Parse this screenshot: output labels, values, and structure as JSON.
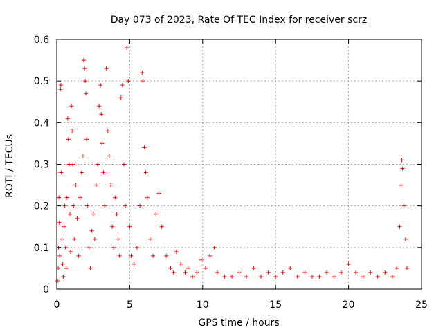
{
  "chart_data": {
    "type": "scatter",
    "title": "Day 073 of 2023, Rate Of TEC Index for receiver scrz",
    "xlabel": "GPS time / hours",
    "ylabel": "ROTI / TECUs",
    "xlim": [
      0,
      25
    ],
    "ylim": [
      0,
      0.6
    ],
    "xticks": [
      0,
      5,
      10,
      15,
      20,
      25
    ],
    "yticks": [
      0,
      0.1,
      0.2,
      0.3,
      0.4,
      0.5,
      0.6
    ],
    "xtick_labels": [
      "0",
      "5",
      "10",
      "15",
      "20",
      "25"
    ],
    "ytick_labels": [
      "0",
      "0.1",
      "0.2",
      "0.3",
      "0.4",
      "0.5",
      "0.6"
    ],
    "grid": true,
    "marker": "+",
    "marker_color": "#ff0000",
    "series": [
      {
        "name": "ROTI",
        "points": [
          [
            0.05,
            0.02
          ],
          [
            0.1,
            0.05
          ],
          [
            0.12,
            0.1
          ],
          [
            0.15,
            0.22
          ],
          [
            0.18,
            0.16
          ],
          [
            0.2,
            0.08
          ],
          [
            0.25,
            0.48
          ],
          [
            0.28,
            0.49
          ],
          [
            0.3,
            0.28
          ],
          [
            0.35,
            0.12
          ],
          [
            0.4,
            0.06
          ],
          [
            0.45,
            0.03
          ],
          [
            0.5,
            0.15
          ],
          [
            0.55,
            0.2
          ],
          [
            0.6,
            0.1
          ],
          [
            0.65,
            0.05
          ],
          [
            0.7,
            0.22
          ],
          [
            0.75,
            0.41
          ],
          [
            0.8,
            0.36
          ],
          [
            0.85,
            0.3
          ],
          [
            0.9,
            0.18
          ],
          [
            0.95,
            0.09
          ],
          [
            1.0,
            0.44
          ],
          [
            1.05,
            0.38
          ],
          [
            1.1,
            0.3
          ],
          [
            1.15,
            0.2
          ],
          [
            1.2,
            0.12
          ],
          [
            1.3,
            0.25
          ],
          [
            1.4,
            0.17
          ],
          [
            1.5,
            0.08
          ],
          [
            1.6,
            0.22
          ],
          [
            1.7,
            0.28
          ],
          [
            1.8,
            0.32
          ],
          [
            1.85,
            0.55
          ],
          [
            1.9,
            0.53
          ],
          [
            1.95,
            0.5
          ],
          [
            2.0,
            0.47
          ],
          [
            2.05,
            0.36
          ],
          [
            2.1,
            0.2
          ],
          [
            2.2,
            0.1
          ],
          [
            2.3,
            0.05
          ],
          [
            2.4,
            0.14
          ],
          [
            2.5,
            0.18
          ],
          [
            2.6,
            0.12
          ],
          [
            2.7,
            0.25
          ],
          [
            2.8,
            0.3
          ],
          [
            2.9,
            0.44
          ],
          [
            3.0,
            0.49
          ],
          [
            3.05,
            0.42
          ],
          [
            3.1,
            0.35
          ],
          [
            3.2,
            0.28
          ],
          [
            3.3,
            0.2
          ],
          [
            3.4,
            0.53
          ],
          [
            3.5,
            0.38
          ],
          [
            3.6,
            0.32
          ],
          [
            3.7,
            0.25
          ],
          [
            3.8,
            0.15
          ],
          [
            3.9,
            0.1
          ],
          [
            4.0,
            0.22
          ],
          [
            4.1,
            0.18
          ],
          [
            4.2,
            0.12
          ],
          [
            4.3,
            0.08
          ],
          [
            4.4,
            0.46
          ],
          [
            4.5,
            0.49
          ],
          [
            4.6,
            0.3
          ],
          [
            4.7,
            0.2
          ],
          [
            4.8,
            0.58
          ],
          [
            4.9,
            0.5
          ],
          [
            5.0,
            0.15
          ],
          [
            5.1,
            0.08
          ],
          [
            5.3,
            0.06
          ],
          [
            5.5,
            0.1
          ],
          [
            5.7,
            0.2
          ],
          [
            5.85,
            0.52
          ],
          [
            5.9,
            0.5
          ],
          [
            6.0,
            0.34
          ],
          [
            6.1,
            0.28
          ],
          [
            6.2,
            0.22
          ],
          [
            6.4,
            0.12
          ],
          [
            6.6,
            0.08
          ],
          [
            6.8,
            0.18
          ],
          [
            7.0,
            0.23
          ],
          [
            7.2,
            0.15
          ],
          [
            7.5,
            0.08
          ],
          [
            7.8,
            0.05
          ],
          [
            8.0,
            0.04
          ],
          [
            8.2,
            0.09
          ],
          [
            8.5,
            0.06
          ],
          [
            8.8,
            0.04
          ],
          [
            9.0,
            0.05
          ],
          [
            9.3,
            0.03
          ],
          [
            9.6,
            0.04
          ],
          [
            9.9,
            0.07
          ],
          [
            10.2,
            0.05
          ],
          [
            10.5,
            0.08
          ],
          [
            10.8,
            0.1
          ],
          [
            11.0,
            0.04
          ],
          [
            11.5,
            0.03
          ],
          [
            12.0,
            0.03
          ],
          [
            12.5,
            0.04
          ],
          [
            13.0,
            0.03
          ],
          [
            13.5,
            0.05
          ],
          [
            14.0,
            0.03
          ],
          [
            14.5,
            0.04
          ],
          [
            15.0,
            0.03
          ],
          [
            15.5,
            0.04
          ],
          [
            16.0,
            0.05
          ],
          [
            16.5,
            0.03
          ],
          [
            17.0,
            0.04
          ],
          [
            17.5,
            0.03
          ],
          [
            18.0,
            0.03
          ],
          [
            18.5,
            0.04
          ],
          [
            19.0,
            0.03
          ],
          [
            19.5,
            0.04
          ],
          [
            20.0,
            0.06
          ],
          [
            20.5,
            0.04
          ],
          [
            21.0,
            0.03
          ],
          [
            21.5,
            0.04
          ],
          [
            22.0,
            0.03
          ],
          [
            22.5,
            0.04
          ],
          [
            23.0,
            0.03
          ],
          [
            23.3,
            0.05
          ],
          [
            23.5,
            0.15
          ],
          [
            23.6,
            0.25
          ],
          [
            23.65,
            0.31
          ],
          [
            23.7,
            0.29
          ],
          [
            23.8,
            0.2
          ],
          [
            23.9,
            0.12
          ],
          [
            24.0,
            0.05
          ]
        ]
      }
    ]
  }
}
